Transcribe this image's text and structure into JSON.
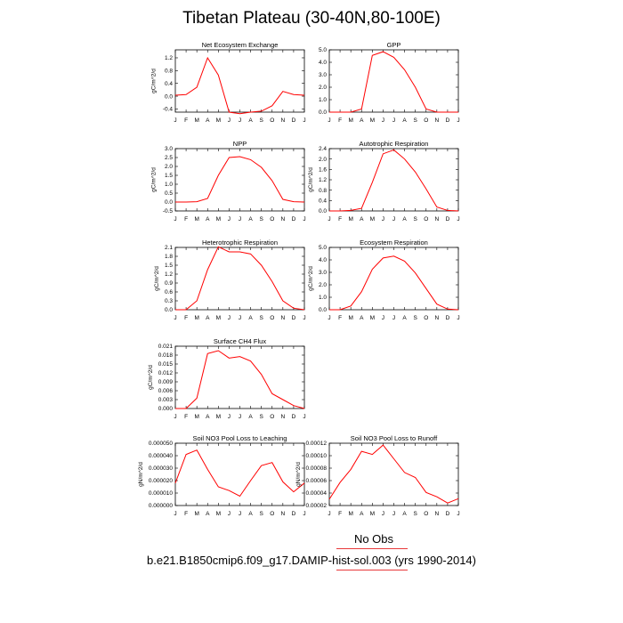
{
  "title": "Tibetan Plateau (30-40N,80-100E)",
  "legend": {
    "obs_label": "No Obs",
    "model_label": "b.e21.B1850cmip6.f09_g17.DAMIP-hist-sol.003 (yrs 1990-2014)",
    "model_color": "#ff0000"
  },
  "months": [
    "J",
    "F",
    "M",
    "A",
    "M",
    "J",
    "J",
    "A",
    "S",
    "O",
    "N",
    "D",
    "J"
  ],
  "chart_data": [
    {
      "type": "line",
      "title": "Net Ecosystem Exchange",
      "ylabel": "gC/m^2/d",
      "ylim": [
        -0.5,
        1.45
      ],
      "yticks": [
        "1.2",
        "0.8",
        "0.4",
        "0.0",
        "-0.4"
      ],
      "ytick_values": [
        1.2,
        0.8,
        0.4,
        0.0,
        -0.4
      ],
      "values": [
        0.03,
        0.05,
        0.28,
        1.2,
        0.66,
        -0.5,
        -0.55,
        -0.5,
        -0.47,
        -0.3,
        0.15,
        0.05,
        0.03
      ]
    },
    {
      "type": "line",
      "title": "GPP",
      "ylabel": "",
      "ylim": [
        0,
        5
      ],
      "yticks": [
        "5.0",
        "4.0",
        "3.0",
        "2.0",
        "1.0",
        "0.0"
      ],
      "ytick_values": [
        5,
        4,
        3,
        2,
        1,
        0
      ],
      "values": [
        0,
        0,
        0,
        0.25,
        4.55,
        4.85,
        4.4,
        3.4,
        2.0,
        0.25,
        0,
        0,
        0
      ]
    },
    {
      "type": "line",
      "title": "NPP",
      "ylabel": "gC/m^2/d",
      "ylim": [
        -0.5,
        3
      ],
      "yticks": [
        "3.0",
        "2.5",
        "2.0",
        "1.5",
        "1.0",
        "0.5",
        "0.0",
        "-0.5"
      ],
      "ytick_values": [
        3,
        2.5,
        2,
        1.5,
        1,
        0.5,
        0,
        -0.5
      ],
      "values": [
        0,
        0,
        0.02,
        0.2,
        1.5,
        2.5,
        2.55,
        2.38,
        1.95,
        1.2,
        0.15,
        0.02,
        0
      ]
    },
    {
      "type": "line",
      "title": "Autotrophic Respiration",
      "ylabel": "gC/m^2/d",
      "ylim": [
        0,
        2.4
      ],
      "yticks": [
        "2.4",
        "2.0",
        "1.6",
        "1.2",
        "0.8",
        "0.4",
        "0.0"
      ],
      "ytick_values": [
        2.4,
        2.0,
        1.6,
        1.2,
        0.8,
        0.4,
        0
      ],
      "values": [
        0,
        0,
        0.02,
        0.1,
        1.1,
        2.2,
        2.35,
        2.0,
        1.5,
        0.85,
        0.15,
        0.02,
        0
      ]
    },
    {
      "type": "line",
      "title": "Heterotrophic Respiration",
      "ylabel": "gC/m^2/d",
      "ylim": [
        0,
        2.1
      ],
      "yticks": [
        "2.1",
        "1.8",
        "1.5",
        "1.2",
        "0.9",
        "0.6",
        "0.3",
        "0.0"
      ],
      "ytick_values": [
        2.1,
        1.8,
        1.5,
        1.2,
        0.9,
        0.6,
        0.3,
        0
      ],
      "values": [
        0,
        0,
        0.3,
        1.35,
        2.12,
        1.95,
        1.95,
        1.88,
        1.5,
        0.95,
        0.3,
        0.05,
        0
      ]
    },
    {
      "type": "line",
      "title": "Ecosystem Respiration",
      "ylabel": "gC/m^2/d",
      "ylim": [
        0,
        5
      ],
      "yticks": [
        "5.0",
        "4.0",
        "3.0",
        "2.0",
        "1.0",
        "0.0"
      ],
      "ytick_values": [
        5,
        4,
        3,
        2,
        1,
        0
      ],
      "values": [
        0,
        0,
        0.3,
        1.45,
        3.25,
        4.15,
        4.3,
        3.9,
        2.95,
        1.7,
        0.45,
        0.05,
        0
      ]
    },
    {
      "type": "line",
      "title": "Surface CH4 Flux",
      "ylabel": "gC/m^2/d",
      "ylim": [
        0,
        0.021
      ],
      "yticks": [
        "0.021",
        "0.018",
        "0.015",
        "0.012",
        "0.009",
        "0.006",
        "0.003",
        "0.000"
      ],
      "ytick_values": [
        0.021,
        0.018,
        0.015,
        0.012,
        0.009,
        0.006,
        0.003,
        0
      ],
      "values": [
        0,
        0,
        0.0035,
        0.0185,
        0.0195,
        0.017,
        0.0175,
        0.016,
        0.0115,
        0.005,
        0.003,
        0.001,
        0
      ]
    },
    {
      "type": "line",
      "title": "Soil NO3 Pool Loss to Leaching",
      "ylabel": "gN/m^2/d",
      "ylim": [
        0,
        5e-05
      ],
      "yticks": [
        "0.000050",
        "0.000040",
        "0.000030",
        "0.000020",
        "0.000010",
        "0.000000"
      ],
      "ytick_values": [
        5e-05,
        4e-05,
        3e-05,
        2e-05,
        1e-05,
        0
      ],
      "values": [
        1.8e-05,
        4.1e-05,
        4.45e-05,
        2.9e-05,
        1.5e-05,
        1.2e-05,
        7.5e-06,
        2e-05,
        3.2e-05,
        3.45e-05,
        1.9e-05,
        1.1e-05,
        1.8e-05
      ]
    },
    {
      "type": "line",
      "title": "Soil NO3 Pool Loss to Runoff",
      "ylabel": "gN/m^2/d",
      "ylim": [
        2e-05,
        0.00012
      ],
      "yticks": [
        "0.00012",
        "0.00010",
        "0.00008",
        "0.00006",
        "0.00004",
        "0.00002"
      ],
      "ytick_values": [
        0.00012,
        0.0001,
        8e-05,
        6e-05,
        4e-05,
        2e-05
      ],
      "values": [
        3e-05,
        5.7e-05,
        7.8e-05,
        0.000107,
        0.000102,
        0.000117,
        9.5e-05,
        7.3e-05,
        6.5e-05,
        4.1e-05,
        3.4e-05,
        2.4e-05,
        3.1e-05
      ]
    }
  ]
}
